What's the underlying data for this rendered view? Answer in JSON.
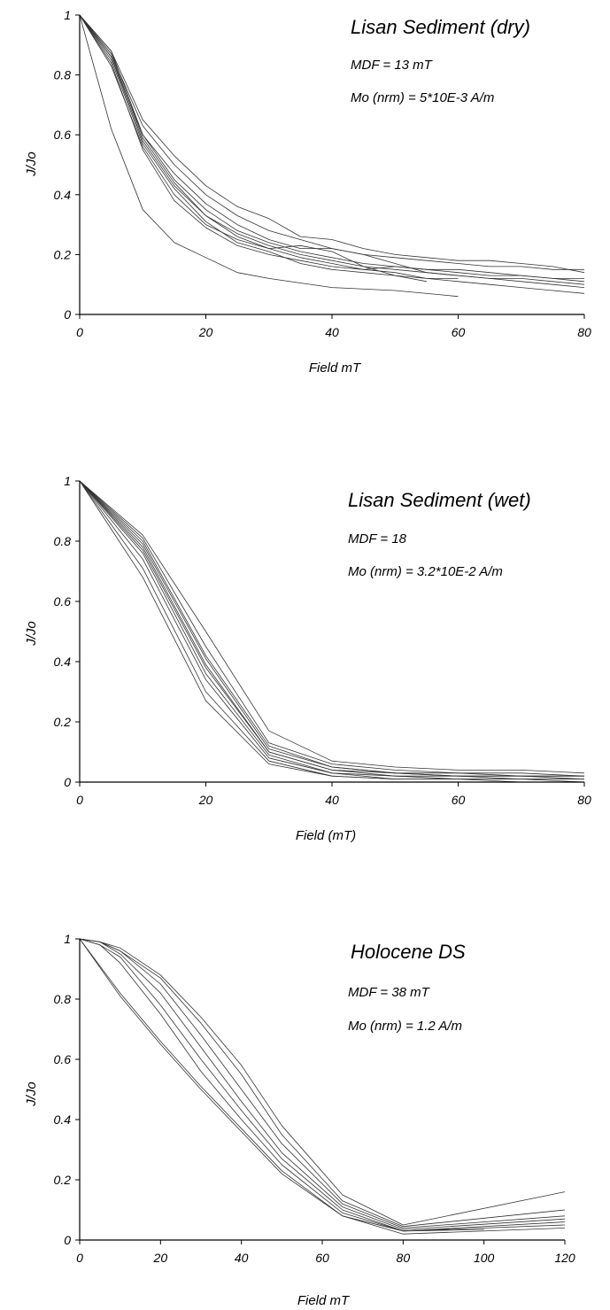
{
  "figure": {
    "colors": {
      "line": "#333333",
      "axis": "#000000",
      "background": "#ffffff"
    }
  },
  "chart_data": [
    {
      "type": "line",
      "title": "Lisan Sediment (dry)",
      "annotations": [
        "MDF = 13 mT",
        "Mo (nrm) = 5*10E-3 A/m"
      ],
      "xlabel": "Field mT",
      "ylabel": "J/Jo",
      "xlim": [
        0,
        80
      ],
      "ylim": [
        0,
        1
      ],
      "xticks": [
        0,
        20,
        40,
        60,
        80
      ],
      "xtick_labels": [
        "0",
        "20",
        "40",
        "60",
        "80"
      ],
      "yticks": [
        0,
        0.2,
        0.4,
        0.6,
        0.8,
        1
      ],
      "ytick_labels": [
        "0",
        "0.2",
        "0.4",
        "0.6",
        "0.8",
        "1"
      ],
      "grid": false,
      "series": [
        {
          "x": [
            0,
            5,
            10,
            15,
            20,
            25,
            30,
            40,
            50,
            60
          ],
          "y": [
            1,
            0.62,
            0.35,
            0.24,
            0.19,
            0.14,
            0.12,
            0.09,
            0.08,
            0.06
          ]
        },
        {
          "x": [
            0,
            5,
            10,
            15,
            20,
            25,
            30,
            35,
            40,
            45,
            50,
            55,
            60
          ],
          "y": [
            1,
            0.84,
            0.55,
            0.38,
            0.29,
            0.23,
            0.2,
            0.18,
            0.16,
            0.15,
            0.14,
            0.12,
            0.12
          ]
        },
        {
          "x": [
            0,
            5,
            10,
            15,
            20,
            25,
            30,
            35,
            40,
            45,
            50,
            55,
            60,
            65,
            70,
            75,
            80
          ],
          "y": [
            1,
            0.86,
            0.58,
            0.43,
            0.33,
            0.27,
            0.23,
            0.2,
            0.18,
            0.16,
            0.15,
            0.14,
            0.13,
            0.12,
            0.12,
            0.11,
            0.1
          ]
        },
        {
          "x": [
            0,
            5,
            10,
            15,
            20,
            25,
            30,
            35,
            40,
            45,
            50,
            55,
            60,
            65,
            70,
            75,
            80
          ],
          "y": [
            1,
            0.88,
            0.6,
            0.45,
            0.35,
            0.28,
            0.24,
            0.21,
            0.19,
            0.17,
            0.16,
            0.15,
            0.14,
            0.13,
            0.13,
            0.12,
            0.12
          ]
        },
        {
          "x": [
            0,
            5,
            10,
            15,
            20,
            25,
            30,
            35,
            40,
            45,
            50,
            55,
            60,
            65,
            70,
            75,
            80
          ],
          "y": [
            1,
            0.87,
            0.63,
            0.5,
            0.4,
            0.33,
            0.28,
            0.25,
            0.22,
            0.2,
            0.19,
            0.18,
            0.17,
            0.16,
            0.16,
            0.15,
            0.15
          ]
        },
        {
          "x": [
            0,
            5,
            10,
            15,
            20,
            25,
            30,
            35,
            40,
            45,
            50,
            55,
            60,
            65,
            70,
            75,
            80
          ],
          "y": [
            1,
            0.88,
            0.65,
            0.53,
            0.43,
            0.36,
            0.32,
            0.26,
            0.25,
            0.22,
            0.2,
            0.19,
            0.18,
            0.18,
            0.17,
            0.16,
            0.14
          ]
        },
        {
          "x": [
            0,
            5,
            10,
            15,
            20,
            25,
            30,
            35,
            40,
            45,
            50,
            55,
            60,
            65,
            70,
            75,
            80
          ],
          "y": [
            1,
            0.85,
            0.57,
            0.42,
            0.31,
            0.24,
            0.21,
            0.17,
            0.15,
            0.14,
            0.13,
            0.12,
            0.11,
            0.1,
            0.09,
            0.08,
            0.07
          ]
        },
        {
          "x": [
            0,
            5,
            10,
            15,
            20,
            25,
            30,
            35,
            40,
            45,
            50,
            55,
            60,
            65,
            70,
            75,
            80
          ],
          "y": [
            1,
            0.86,
            0.6,
            0.47,
            0.37,
            0.3,
            0.25,
            0.22,
            0.22,
            0.2,
            0.17,
            0.14,
            0.13,
            0.12,
            0.11,
            0.1,
            0.09
          ]
        },
        {
          "x": [
            0,
            5,
            10,
            15,
            20,
            25,
            30,
            35,
            40,
            45,
            50,
            55
          ],
          "y": [
            1,
            0.83,
            0.56,
            0.4,
            0.3,
            0.25,
            0.22,
            0.23,
            0.21,
            0.16,
            0.13,
            0.11
          ]
        },
        {
          "x": [
            0,
            5,
            10,
            15,
            20,
            25,
            30,
            35,
            40,
            45,
            50,
            55,
            60,
            65,
            70,
            75,
            80
          ],
          "y": [
            1,
            0.87,
            0.59,
            0.44,
            0.33,
            0.26,
            0.22,
            0.19,
            0.17,
            0.15,
            0.16,
            0.15,
            0.15,
            0.14,
            0.13,
            0.12,
            0.11
          ]
        }
      ]
    },
    {
      "type": "line",
      "title": "Lisan Sediment (wet)",
      "annotations": [
        "MDF = 18",
        "Mo (nrm) = 3.2*10E-2 A/m"
      ],
      "xlabel": "Field (mT)",
      "ylabel": "J/Jo",
      "xlim": [
        0,
        80
      ],
      "ylim": [
        0,
        1
      ],
      "xticks": [
        0,
        20,
        40,
        60,
        80
      ],
      "xtick_labels": [
        "0",
        "20",
        "40",
        "60",
        "80"
      ],
      "yticks": [
        0,
        0.2,
        0.4,
        0.6,
        0.8,
        1
      ],
      "ytick_labels": [
        "0",
        "0.2",
        "0.4",
        "0.6",
        "0.8",
        "1"
      ],
      "grid": false,
      "series": [
        {
          "x": [
            0,
            10,
            20,
            30,
            40,
            50,
            60,
            70,
            80
          ],
          "y": [
            1,
            0.68,
            0.27,
            0.06,
            0.02,
            0.01,
            0.01,
            0.01,
            0.0
          ]
        },
        {
          "x": [
            0,
            10,
            20,
            30,
            40,
            50,
            60,
            70,
            80
          ],
          "y": [
            1,
            0.71,
            0.3,
            0.07,
            0.02,
            0.01,
            0.01,
            0.0,
            0.0
          ]
        },
        {
          "x": [
            0,
            10,
            20,
            30,
            40,
            50,
            60,
            70,
            80
          ],
          "y": [
            1,
            0.74,
            0.34,
            0.08,
            0.03,
            0.01,
            0.01,
            0.01,
            0.01
          ]
        },
        {
          "x": [
            0,
            10,
            20,
            30,
            40,
            50,
            60,
            70,
            80
          ],
          "y": [
            1,
            0.76,
            0.36,
            0.09,
            0.03,
            0.02,
            0.01,
            0.01,
            0.01
          ]
        },
        {
          "x": [
            0,
            10,
            20,
            30,
            40,
            50,
            60,
            70,
            80
          ],
          "y": [
            1,
            0.77,
            0.38,
            0.1,
            0.04,
            0.02,
            0.02,
            0.01,
            0.01
          ]
        },
        {
          "x": [
            0,
            10,
            20,
            30,
            40,
            50,
            60,
            70,
            80
          ],
          "y": [
            1,
            0.78,
            0.39,
            0.1,
            0.04,
            0.03,
            0.02,
            0.02,
            0.01
          ]
        },
        {
          "x": [
            0,
            10,
            20,
            30,
            40,
            50,
            60,
            70,
            80
          ],
          "y": [
            1,
            0.79,
            0.41,
            0.11,
            0.05,
            0.03,
            0.02,
            0.02,
            0.02
          ]
        },
        {
          "x": [
            0,
            10,
            20,
            30,
            40,
            50,
            60,
            70,
            80
          ],
          "y": [
            1,
            0.8,
            0.42,
            0.12,
            0.05,
            0.03,
            0.03,
            0.02,
            0.02
          ]
        },
        {
          "x": [
            0,
            10,
            20,
            30,
            40,
            50,
            60,
            70,
            80
          ],
          "y": [
            1,
            0.81,
            0.45,
            0.13,
            0.06,
            0.04,
            0.03,
            0.03,
            0.02
          ]
        },
        {
          "x": [
            0,
            10,
            20,
            30,
            40,
            50,
            60,
            70,
            80
          ],
          "y": [
            1,
            0.82,
            0.5,
            0.17,
            0.07,
            0.05,
            0.04,
            0.04,
            0.03
          ]
        }
      ]
    },
    {
      "type": "line",
      "title": "Holocene DS",
      "annotations": [
        "MDF = 38 mT",
        "Mo (nrm) = 1.2 A/m"
      ],
      "xlabel": "Field mT",
      "ylabel": "J/Jo",
      "xlim": [
        0,
        120
      ],
      "ylim": [
        0,
        1
      ],
      "xticks": [
        0,
        20,
        40,
        60,
        80,
        100,
        120
      ],
      "xtick_labels": [
        "0",
        "20",
        "40",
        "60",
        "80",
        "100",
        "120"
      ],
      "yticks": [
        0,
        0.2,
        0.4,
        0.6,
        0.8,
        1
      ],
      "ytick_labels": [
        "0",
        "0.2",
        "0.4",
        "0.6",
        "0.8",
        "1"
      ],
      "grid": false,
      "series": [
        {
          "x": [
            0,
            10,
            20,
            30,
            40,
            50,
            65,
            80,
            100
          ],
          "y": [
            1,
            0.81,
            0.65,
            0.5,
            0.36,
            0.22,
            0.08,
            0.03,
            0.035
          ]
        },
        {
          "x": [
            0,
            10,
            20,
            30,
            40,
            50,
            65,
            80,
            120
          ],
          "y": [
            1,
            0.82,
            0.66,
            0.51,
            0.37,
            0.23,
            0.08,
            0.02,
            0.04
          ]
        },
        {
          "x": [
            0,
            5,
            10,
            20,
            30,
            40,
            50,
            65,
            80,
            120
          ],
          "y": [
            1,
            0.98,
            0.92,
            0.75,
            0.56,
            0.4,
            0.25,
            0.09,
            0.03,
            0.05
          ]
        },
        {
          "x": [
            0,
            5,
            10,
            20,
            30,
            40,
            50,
            65,
            80,
            120
          ],
          "y": [
            1,
            0.98,
            0.94,
            0.78,
            0.6,
            0.43,
            0.27,
            0.1,
            0.03,
            0.06
          ]
        },
        {
          "x": [
            0,
            5,
            10,
            20,
            30,
            40,
            50,
            65,
            80,
            120
          ],
          "y": [
            1,
            0.99,
            0.95,
            0.82,
            0.64,
            0.46,
            0.29,
            0.11,
            0.035,
            0.07
          ]
        },
        {
          "x": [
            0,
            5,
            10,
            20,
            30,
            40,
            50,
            65,
            80,
            120
          ],
          "y": [
            1,
            0.99,
            0.96,
            0.85,
            0.68,
            0.5,
            0.32,
            0.12,
            0.04,
            0.08
          ]
        },
        {
          "x": [
            0,
            5,
            10,
            20,
            30,
            40,
            50,
            65,
            80,
            120
          ],
          "y": [
            1,
            0.99,
            0.96,
            0.87,
            0.72,
            0.55,
            0.35,
            0.13,
            0.045,
            0.1
          ]
        },
        {
          "x": [
            0,
            5,
            10,
            20,
            30,
            40,
            50,
            65,
            80,
            120
          ],
          "y": [
            1,
            0.99,
            0.97,
            0.88,
            0.74,
            0.58,
            0.38,
            0.15,
            0.05,
            0.16
          ]
        }
      ]
    }
  ]
}
